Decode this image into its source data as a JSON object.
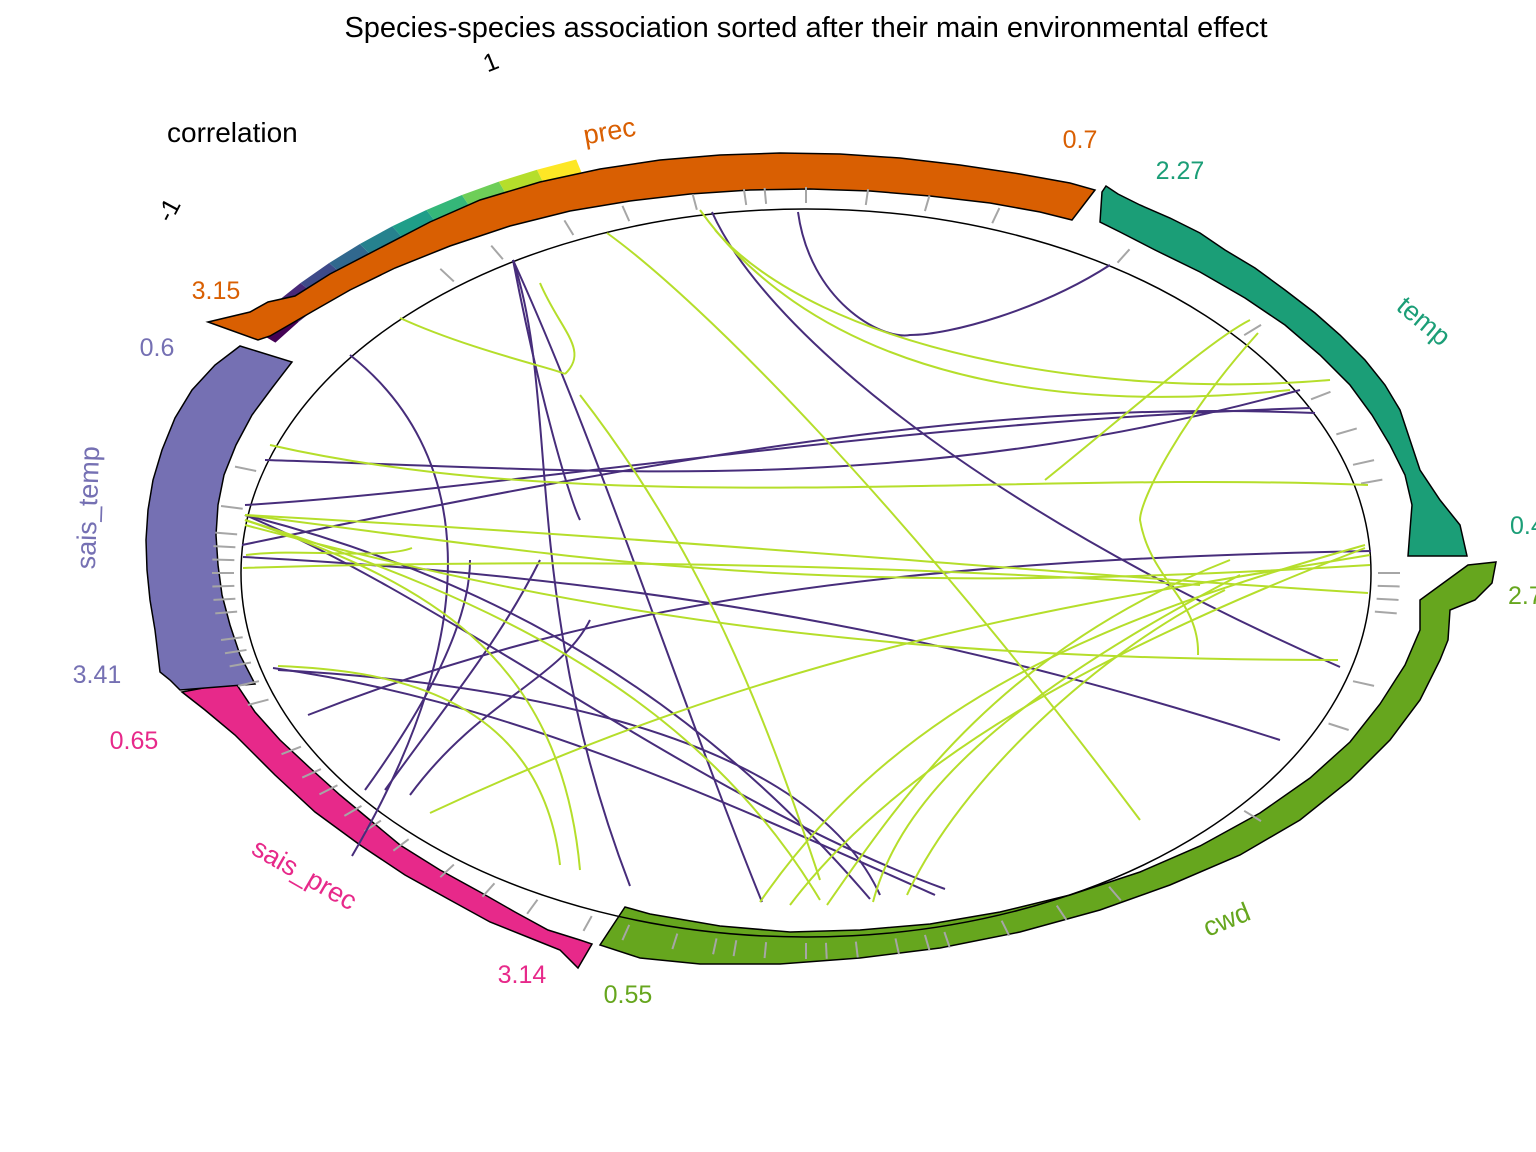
{
  "title": "Species-species association sorted after their main environmental effect",
  "legend": {
    "title": "correlation",
    "min_label": "-1",
    "max_label": "1",
    "colors": [
      "#440154",
      "#482878",
      "#3e4a89",
      "#31688e",
      "#26828e",
      "#1f9e89",
      "#35b779",
      "#6ece58",
      "#b5de2b",
      "#fde725"
    ]
  },
  "line_colors": {
    "negative": "#472d7b",
    "positive": "#b5de2b"
  },
  "groups": [
    {
      "key": "prec",
      "label": "prec",
      "color": "#d95f02",
      "min_label": "0.7",
      "max_label": "3.15"
    },
    {
      "key": "temp",
      "label": "temp",
      "color": "#1b9e77",
      "min_label": "0.4",
      "max_label": "2.27"
    },
    {
      "key": "cwd",
      "label": "cwd",
      "color": "#66a61e",
      "min_label": "0.55",
      "max_label": "2.7"
    },
    {
      "key": "sais_prec",
      "label": "sais_prec",
      "color": "#e7298a",
      "min_label": "0.65",
      "max_label": "3.14"
    },
    {
      "key": "sais_temp",
      "label": "sais_temp",
      "color": "#7570b3",
      "min_label": "0.6",
      "max_label": "3.41"
    }
  ]
}
